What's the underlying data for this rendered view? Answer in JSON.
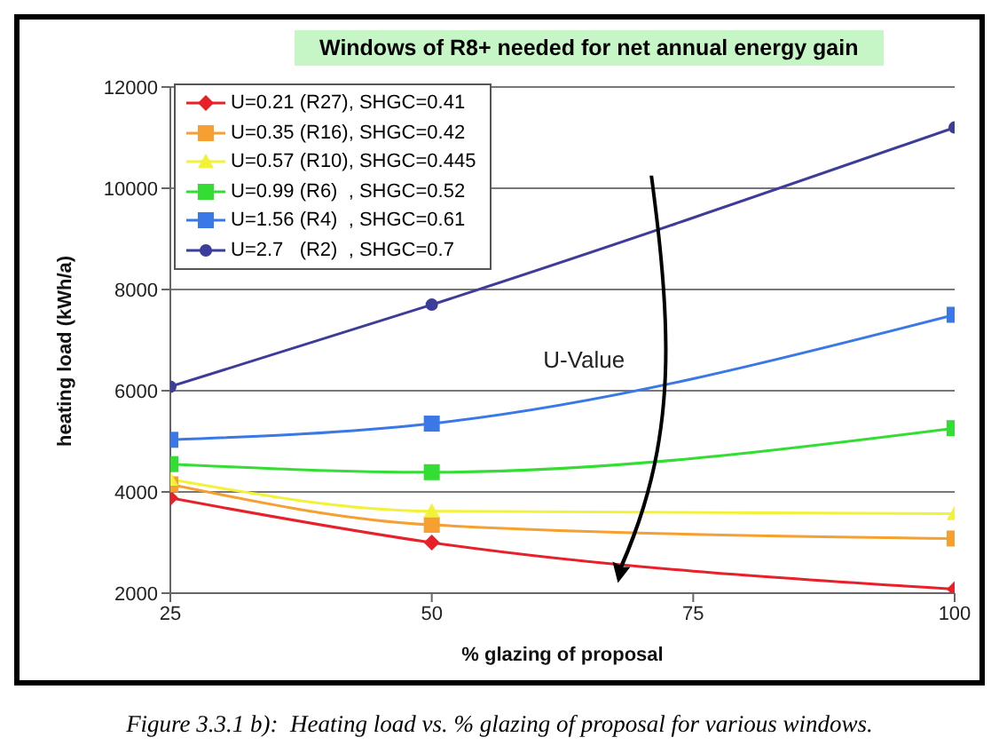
{
  "chart_data": {
    "type": "line",
    "title": "Windows of R8+ needed for net annual energy gain",
    "xlabel": "% glazing of proposal",
    "ylabel": "heating load (kWh/a)",
    "x": [
      25,
      50,
      100
    ],
    "xlim": [
      25,
      100
    ],
    "xticks": [
      25,
      50,
      75,
      100
    ],
    "ylim": [
      2000,
      12000
    ],
    "yticks": [
      2000,
      4000,
      6000,
      8000,
      10000,
      12000
    ],
    "grid": "y",
    "legend": "top left",
    "line_style": "solid",
    "series": [
      {
        "name": "U=0.21 (R27), SHGC=0.41",
        "color": "#e8202a",
        "marker": "diamond",
        "values": [
          3880,
          3000,
          2080
        ]
      },
      {
        "name": "U=0.35 (R16), SHGC=0.42",
        "color": "#f5a030",
        "marker": "square",
        "values": [
          4150,
          3350,
          3080
        ]
      },
      {
        "name": "U=0.57 (R10), SHGC=0.445",
        "color": "#f2f23a",
        "marker": "triangle",
        "values": [
          4250,
          3620,
          3570
        ]
      },
      {
        "name": "U=0.99 (R6)  , SHGC=0.52",
        "color": "#33dd33",
        "marker": "square",
        "values": [
          4550,
          4390,
          5260
        ]
      },
      {
        "name": "U=1.56 (R4)  , SHGC=0.61",
        "color": "#3b78e7",
        "marker": "square",
        "values": [
          5030,
          5350,
          7500
        ]
      },
      {
        "name": "U=2.7   (R2)  , SHGC=0.7",
        "color": "#3c3c99",
        "marker": "circle",
        "values": [
          6080,
          7700,
          11200
        ]
      }
    ],
    "annotations": [
      "U-Value",
      "Figure 3.3.1 b):  Heating load vs. % glazing of proposal for various windows."
    ]
  }
}
